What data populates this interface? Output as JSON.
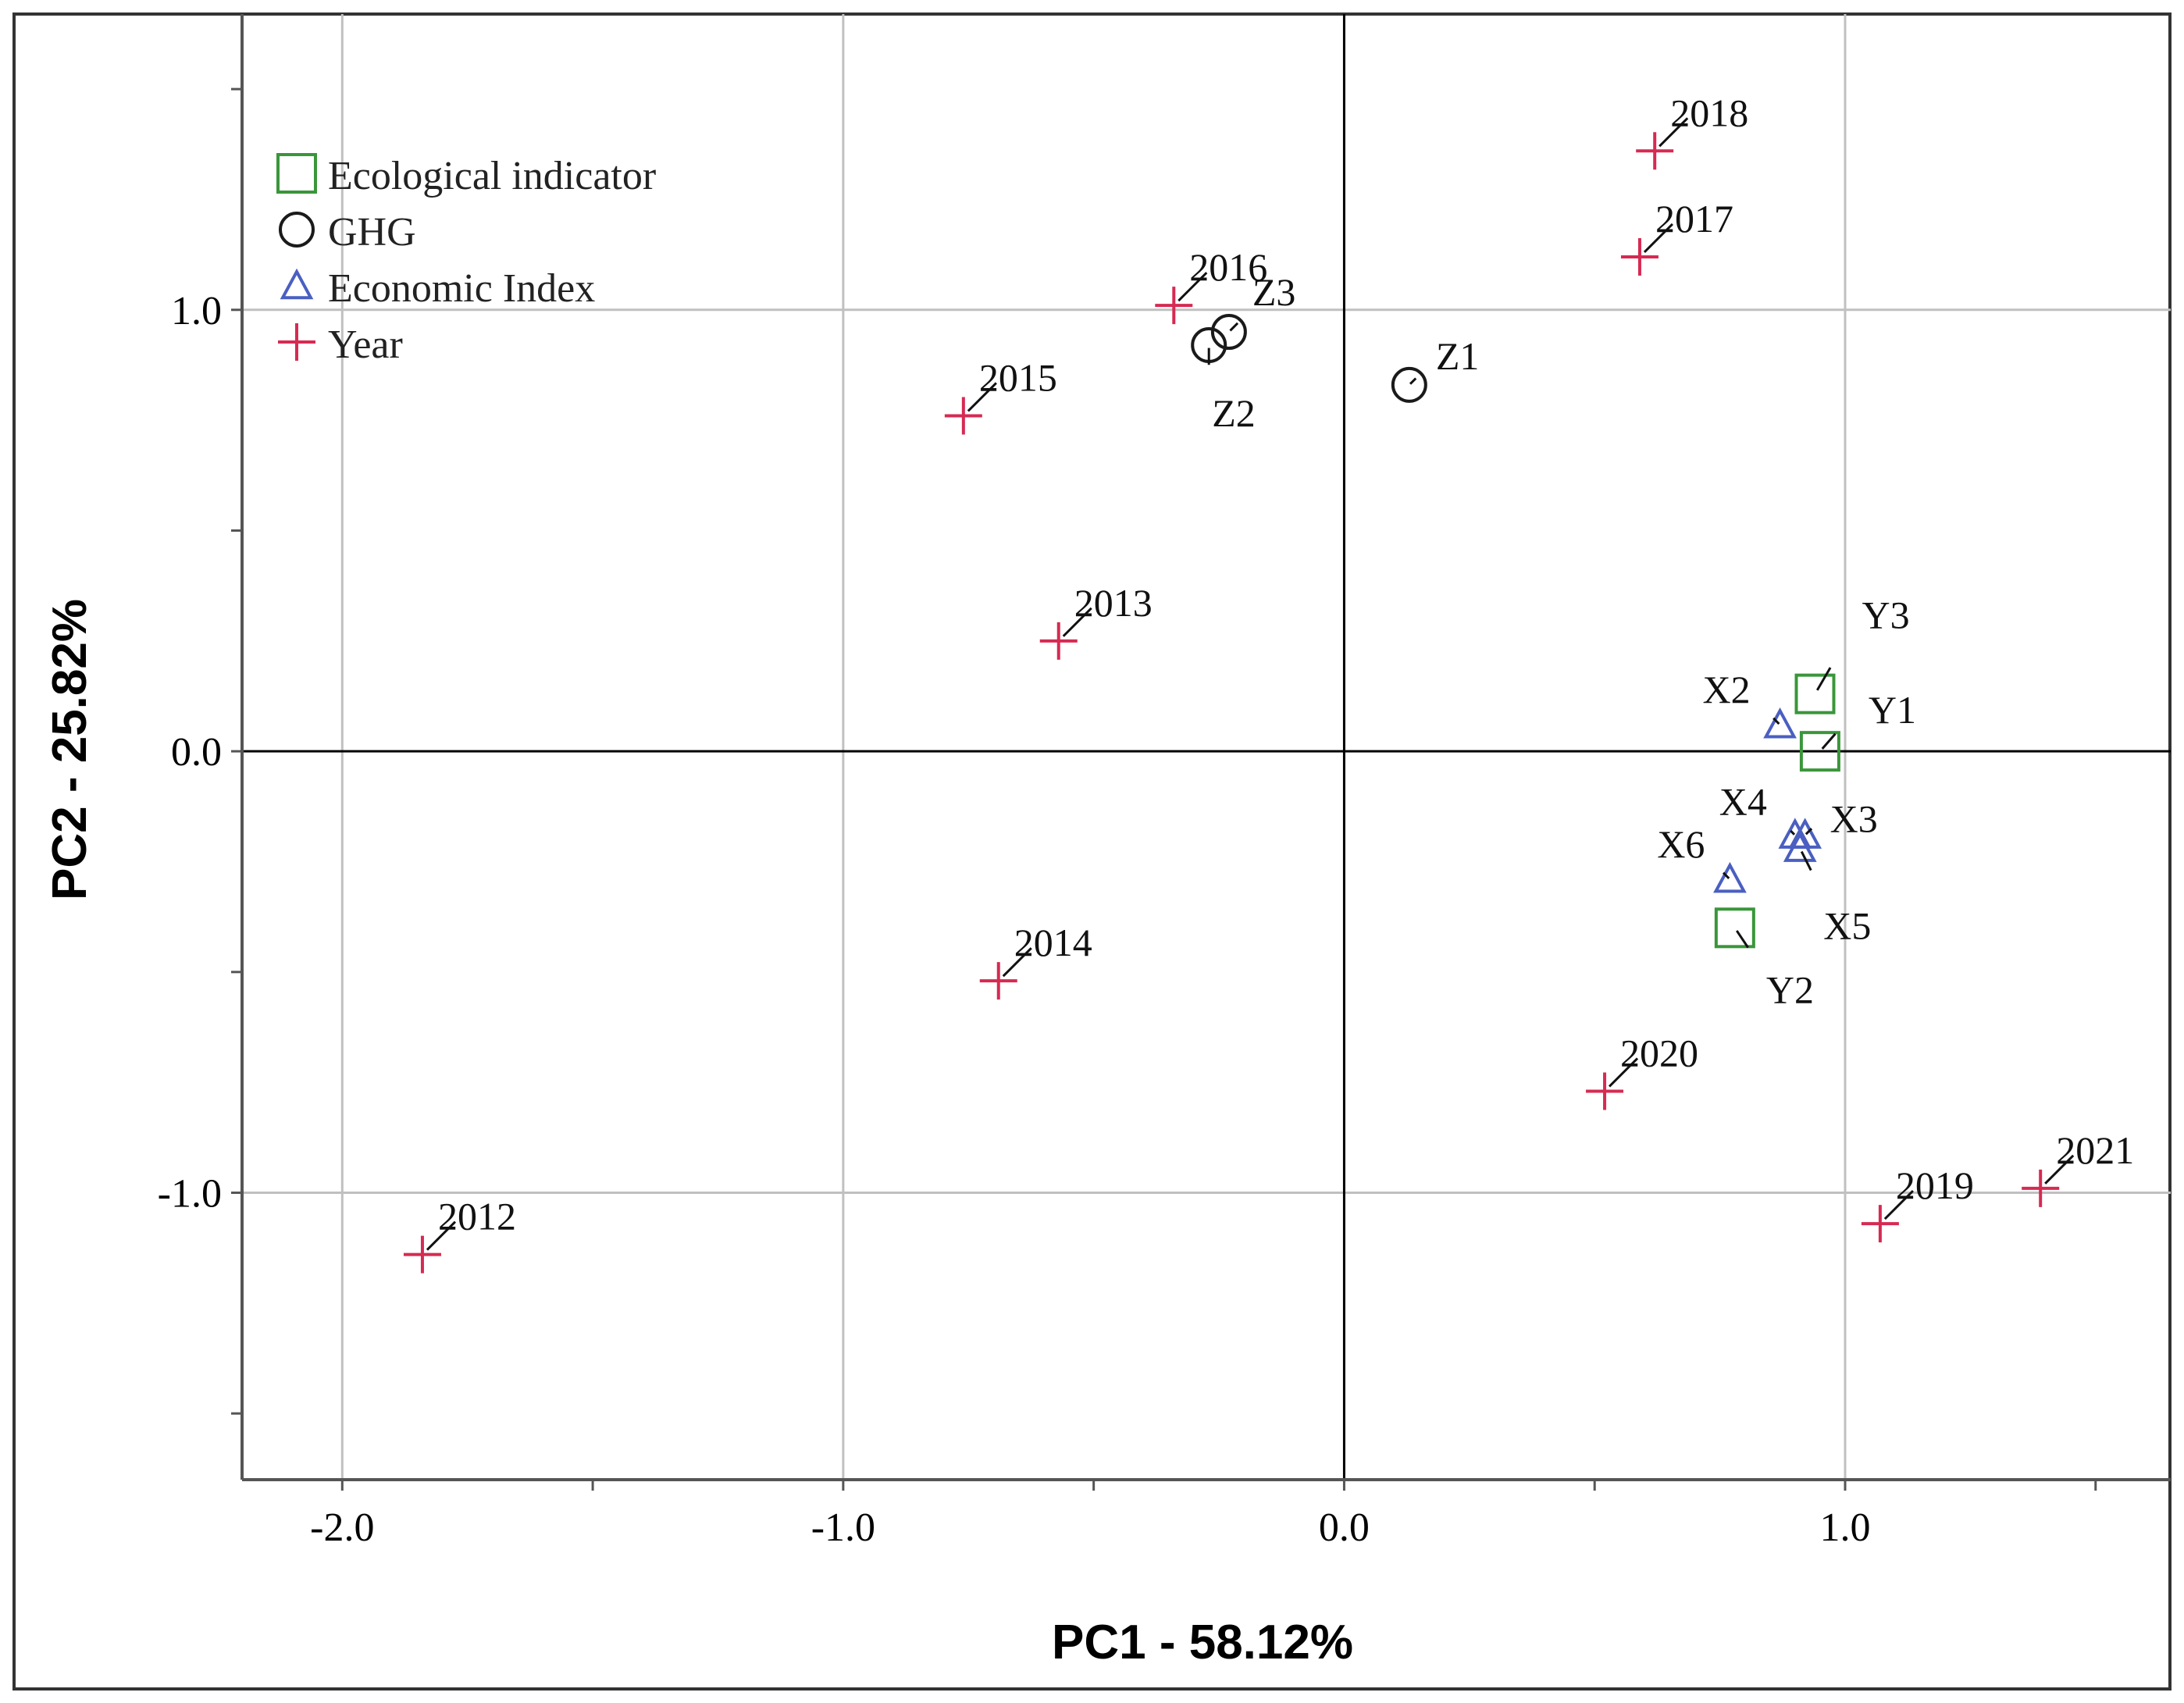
{
  "chart_data": {
    "type": "scatter",
    "title": "",
    "xlabel": "PC1 - 58.12%",
    "ylabel": "PC2 - 25.82%",
    "xlim": [
      -2.2,
      1.65
    ],
    "ylim": [
      -1.65,
      1.67
    ],
    "x_ticks": [
      -2.0,
      -1.5,
      -1.0,
      -0.5,
      0.0,
      0.5,
      1.0,
      1.5
    ],
    "x_tick_labels": [
      "-2.0",
      "-1.0",
      "0.0",
      "1.0"
    ],
    "x_labeled_ticks": [
      -2.0,
      -1.0,
      0.0,
      1.0
    ],
    "y_ticks": [
      -1.5,
      -1.0,
      -0.5,
      0.0,
      0.5,
      1.0,
      1.5
    ],
    "y_tick_labels": [
      "-1.0",
      "0.0",
      "1.0"
    ],
    "y_labeled_ticks": [
      -1.0,
      0.0,
      1.0
    ],
    "gridlines_x": [
      -2.0,
      -1.0,
      1.0
    ],
    "gridlines_y": [
      -1.0,
      1.0
    ],
    "reference_lines": {
      "x": 0.0,
      "y": 0.0
    },
    "grid": true,
    "legend_position": "top-left",
    "colors": {
      "ecological": "#3a963a",
      "ghg": "#1a1a1a",
      "economic": "#4a5fc1",
      "year": "#d62a52",
      "grid": "#c0c0c0",
      "axis": "#000000"
    },
    "series": [
      {
        "name": "Ecological indicator",
        "marker": "square",
        "points": [
          {
            "label": "Y3",
            "x": 0.94,
            "y": 0.13
          },
          {
            "label": "Y1",
            "x": 0.95,
            "y": 0.0
          },
          {
            "label": "Y2",
            "x": 0.78,
            "y": -0.4
          }
        ]
      },
      {
        "name": "GHG",
        "marker": "circle",
        "points": [
          {
            "label": "Z1",
            "x": 0.13,
            "y": 0.83
          },
          {
            "label": "Z3",
            "x": -0.23,
            "y": 0.95
          },
          {
            "label": "Z2",
            "x": -0.27,
            "y": 0.92
          }
        ]
      },
      {
        "name": "Economic Index",
        "marker": "triangle",
        "points": [
          {
            "label": "X2",
            "x": 0.87,
            "y": 0.06
          },
          {
            "label": "X4",
            "x": 0.9,
            "y": -0.19
          },
          {
            "label": "X3",
            "x": 0.92,
            "y": -0.19
          },
          {
            "label": "X5",
            "x": 0.91,
            "y": -0.22
          },
          {
            "label": "X6",
            "x": 0.77,
            "y": -0.29
          }
        ]
      },
      {
        "name": "Year",
        "marker": "plus",
        "points": [
          {
            "label": "2012",
            "x": -1.84,
            "y": -1.14
          },
          {
            "label": "2013",
            "x": -0.57,
            "y": 0.25
          },
          {
            "label": "2014",
            "x": -0.69,
            "y": -0.52
          },
          {
            "label": "2015",
            "x": -0.76,
            "y": 0.76
          },
          {
            "label": "2016",
            "x": -0.34,
            "y": 1.01
          },
          {
            "label": "2017",
            "x": 0.59,
            "y": 1.12
          },
          {
            "label": "2018",
            "x": 0.62,
            "y": 1.36
          },
          {
            "label": "2019",
            "x": 1.07,
            "y": -1.07
          },
          {
            "label": "2020",
            "x": 0.52,
            "y": -0.77
          },
          {
            "label": "2021",
            "x": 1.39,
            "y": -0.99
          }
        ]
      }
    ]
  }
}
